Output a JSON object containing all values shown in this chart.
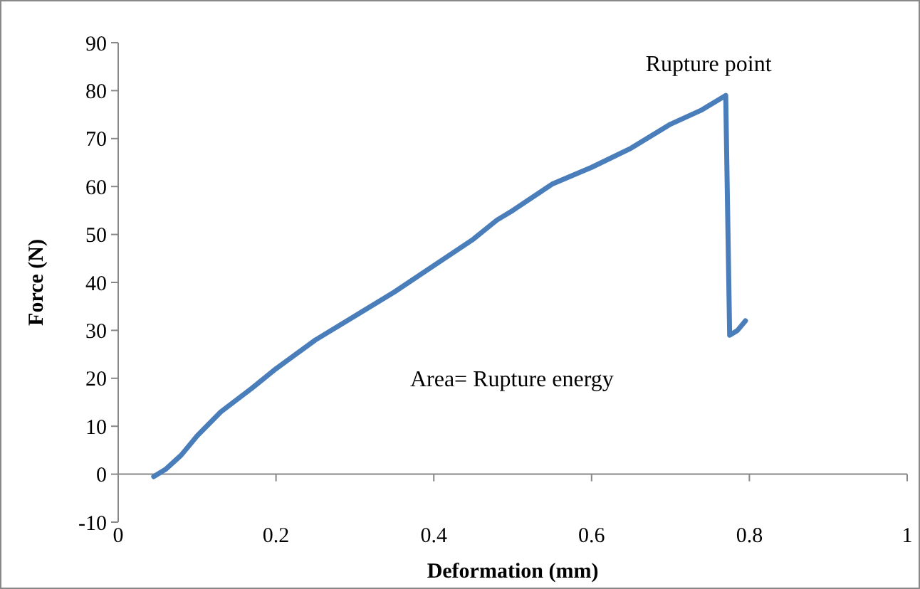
{
  "chart_data": {
    "type": "line",
    "xlabel": "Deformation (mm)",
    "ylabel": "Force (N)",
    "x": [
      0.045,
      0.06,
      0.08,
      0.1,
      0.13,
      0.17,
      0.2,
      0.25,
      0.3,
      0.35,
      0.4,
      0.45,
      0.48,
      0.5,
      0.55,
      0.6,
      0.65,
      0.7,
      0.74,
      0.77,
      0.775,
      0.785,
      0.795
    ],
    "series": [
      {
        "color": "#4a7ebb",
        "values": [
          -0.5,
          1,
          4,
          8,
          13,
          18,
          22,
          28,
          33,
          38,
          43.5,
          49,
          53,
          55,
          60.5,
          64,
          68,
          73,
          76,
          79,
          29,
          30,
          32
        ]
      }
    ],
    "xlim": [
      0,
      1
    ],
    "xticks": [
      0,
      0.2,
      0.4,
      0.6,
      0.8,
      1
    ],
    "ylim": [
      -10,
      90
    ],
    "yticks": [
      -10,
      0,
      10,
      20,
      30,
      40,
      50,
      60,
      70,
      80,
      90
    ],
    "grid": false,
    "marker": "none",
    "line_style": "solid",
    "annotations": [
      {
        "text": "Rupture point",
        "x": 0.77,
        "y": 79
      },
      "Area= Rupture energy"
    ]
  }
}
